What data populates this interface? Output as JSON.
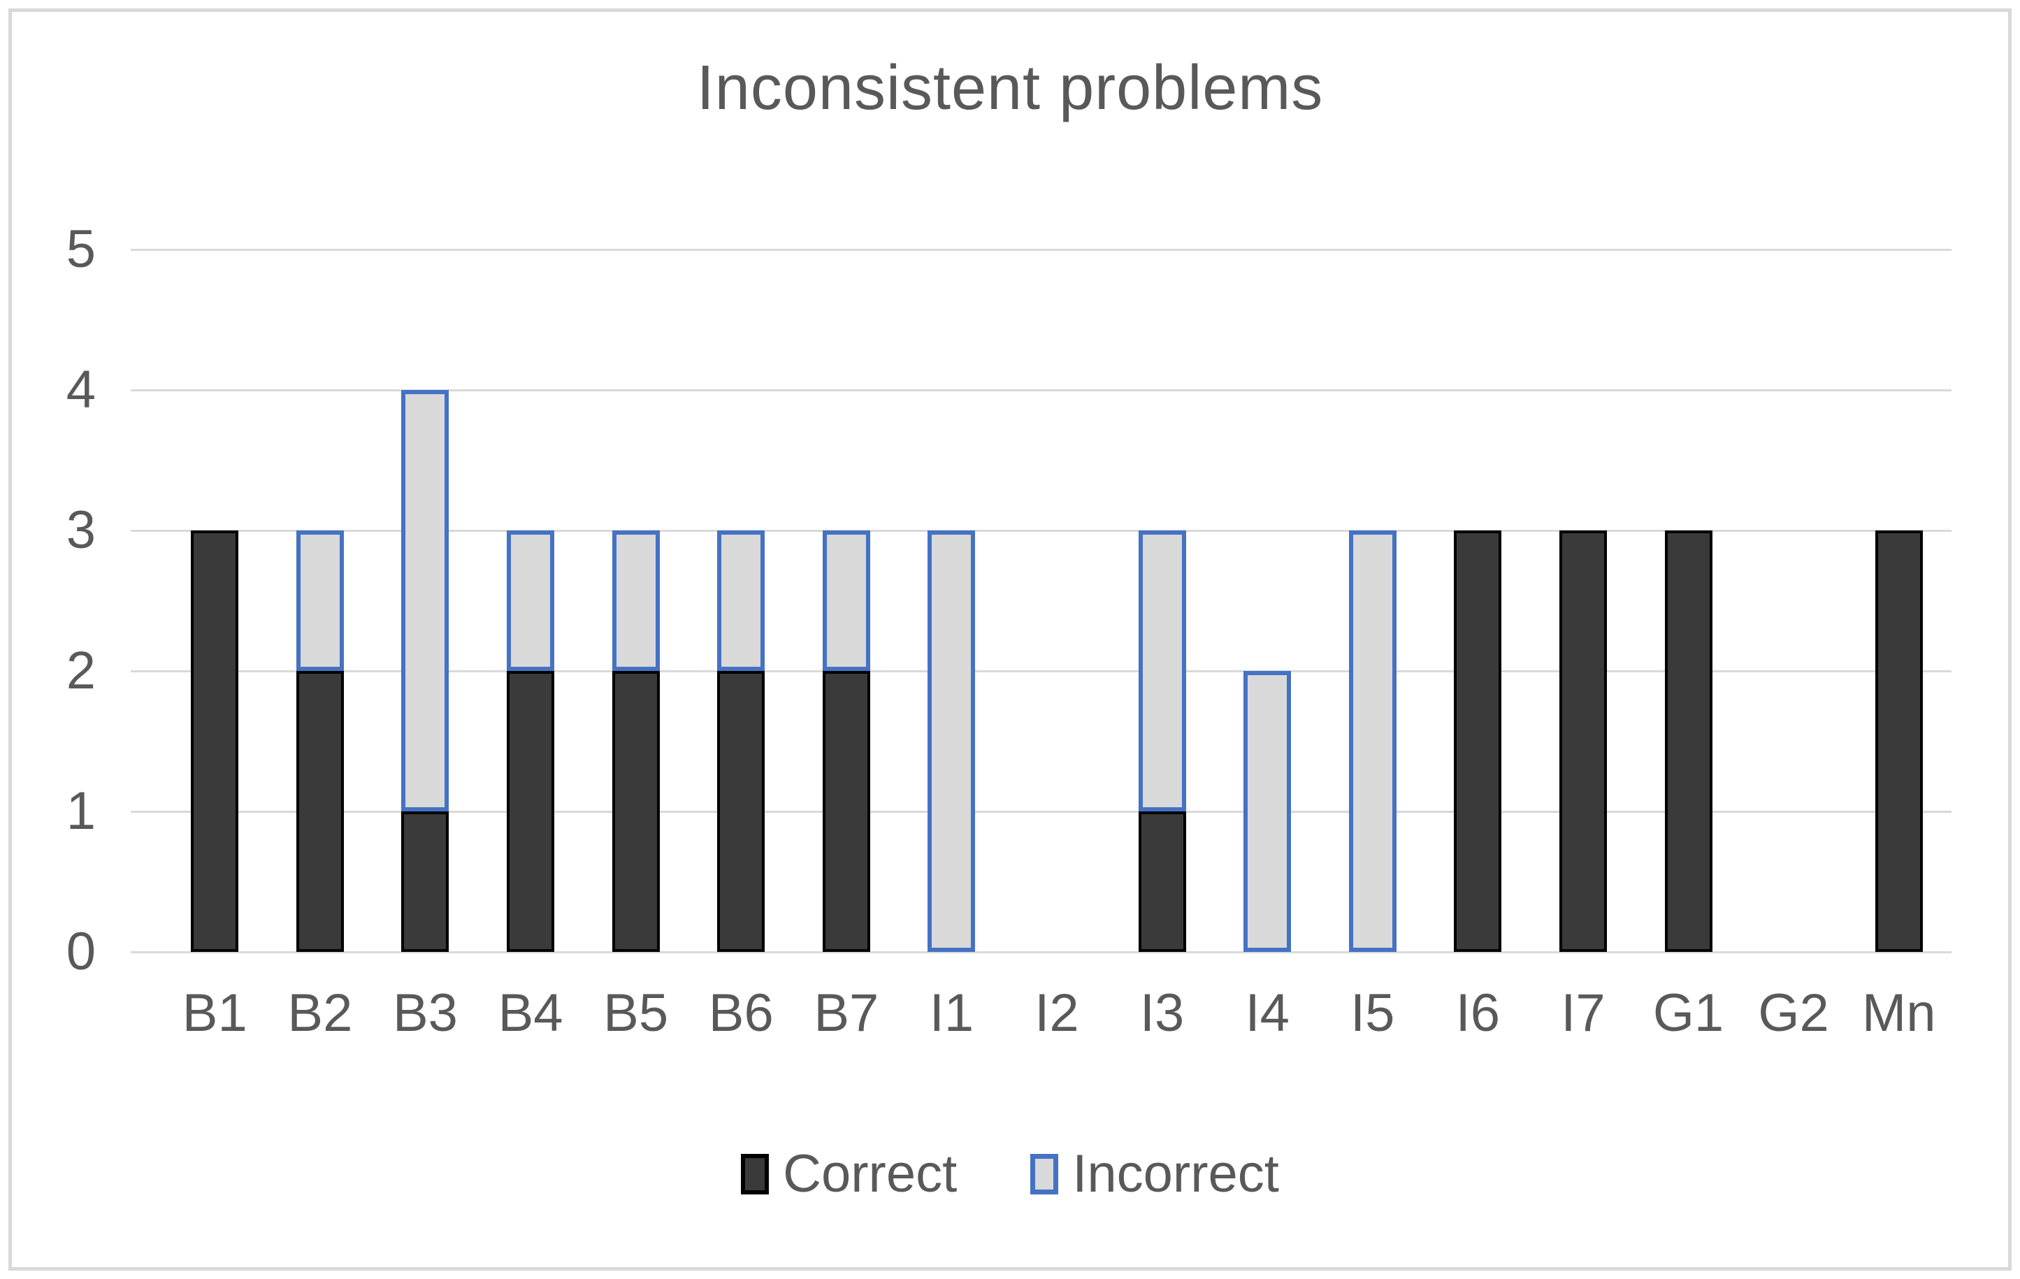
{
  "title": "Inconsistent problems",
  "colors": {
    "text": "#595959",
    "gridline": "#D9D9D9",
    "frame_border": "#D9D9D9",
    "background": "#FFFFFF",
    "correct_fill": "#3A3A3A",
    "correct_border": "#000000",
    "incorrect_fill": "#D9D9D9",
    "incorrect_border": "#4472C4"
  },
  "chart_data": {
    "type": "bar",
    "stacked": true,
    "title": "Inconsistent problems",
    "categories": [
      "B1",
      "B2",
      "B3",
      "B4",
      "B5",
      "B6",
      "B7",
      "I1",
      "I2",
      "I3",
      "I4",
      "I5",
      "I6",
      "I7",
      "G1",
      "G2",
      "Mn"
    ],
    "series": [
      {
        "name": "Correct",
        "values": [
          3,
          2,
          1,
          2,
          2,
          2,
          2,
          0,
          0,
          1,
          0,
          0,
          3,
          3,
          3,
          0,
          3
        ],
        "fill": "#3A3A3A",
        "border": "#000000"
      },
      {
        "name": "Incorrect",
        "values": [
          0,
          1,
          3,
          1,
          1,
          1,
          1,
          3,
          0,
          2,
          2,
          3,
          0,
          0,
          0,
          0,
          0
        ],
        "fill": "#D9D9D9",
        "border": "#4472C4"
      }
    ],
    "xlabel": "",
    "ylabel": "",
    "ylim": [
      0,
      5
    ],
    "y_ticks": [
      0,
      1,
      2,
      3,
      4,
      5
    ],
    "grid": true,
    "legend_position": "bottom"
  }
}
